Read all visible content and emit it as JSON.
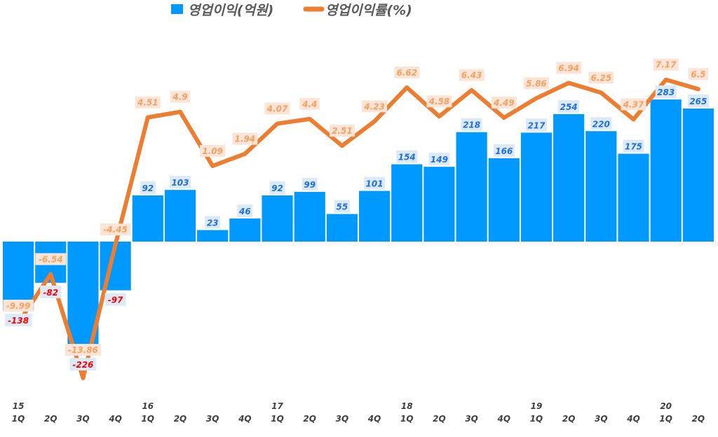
{
  "chart_data": {
    "type": "bar+line",
    "legend_placement": "top",
    "categories": [
      "1Q",
      "2Q",
      "3Q",
      "4Q",
      "1Q",
      "2Q",
      "3Q",
      "4Q",
      "1Q",
      "2Q",
      "3Q",
      "4Q",
      "1Q",
      "2Q",
      "3Q",
      "4Q",
      "1Q",
      "2Q",
      "3Q",
      "4Q",
      "1Q",
      "2Q"
    ],
    "years": [
      "15",
      "",
      "",
      "",
      "16",
      "",
      "",
      "",
      "17",
      "",
      "",
      "",
      "18",
      "",
      "",
      "",
      "19",
      "",
      "",
      "",
      "20",
      ""
    ],
    "series": [
      {
        "name": "영업이익(억원)",
        "type": "bar",
        "color": "#0099FF",
        "values": [
          -138,
          -82,
          -226,
          -97,
          92,
          103,
          23,
          46,
          92,
          99,
          55,
          101,
          154,
          149,
          218,
          166,
          217,
          254,
          220,
          175,
          283,
          265
        ]
      },
      {
        "name": "영업이익률(%)",
        "type": "line",
        "color": "#ED7D31",
        "values": [
          -9.99,
          -6.54,
          -13.86,
          -4.45,
          4.51,
          4.9,
          1.09,
          1.94,
          4.07,
          4.4,
          2.51,
          4.23,
          6.62,
          4.58,
          6.43,
          4.49,
          5.86,
          6.94,
          6.25,
          4.37,
          7.17,
          6.5
        ]
      }
    ],
    "colors": {
      "negative_label": "#FF0000",
      "positive_label": "#1F6FE0",
      "line_label": "#F4A261"
    }
  }
}
